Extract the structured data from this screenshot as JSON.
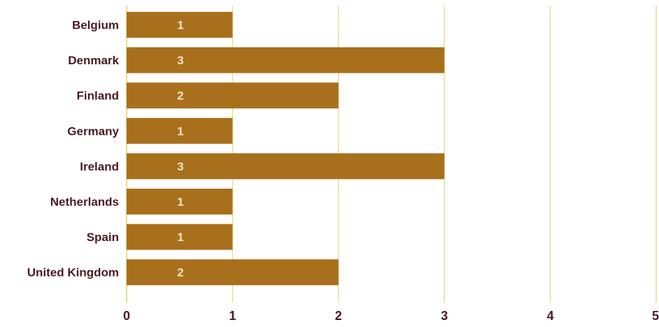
{
  "chart_data": {
    "type": "bar",
    "orientation": "horizontal",
    "categories": [
      "Belgium",
      "Denmark",
      "Finland",
      "Germany",
      "Ireland",
      "Netherlands",
      "Spain",
      "United Kingdom"
    ],
    "values": [
      1,
      3,
      2,
      1,
      3,
      1,
      1,
      2
    ],
    "value_labels": [
      "1",
      "3",
      "2",
      "1",
      "3",
      "1",
      "1",
      "2"
    ],
    "x_ticks": [
      "0",
      "1",
      "2",
      "3",
      "4",
      "5"
    ],
    "xlim": [
      0,
      5
    ],
    "grid": "vertical",
    "colors": {
      "bar": "#a8701c",
      "grid": "#f0d98c",
      "axis": "#f0d98c",
      "label_text": "#4a1a24",
      "value_text": "#f3e6c8"
    }
  }
}
